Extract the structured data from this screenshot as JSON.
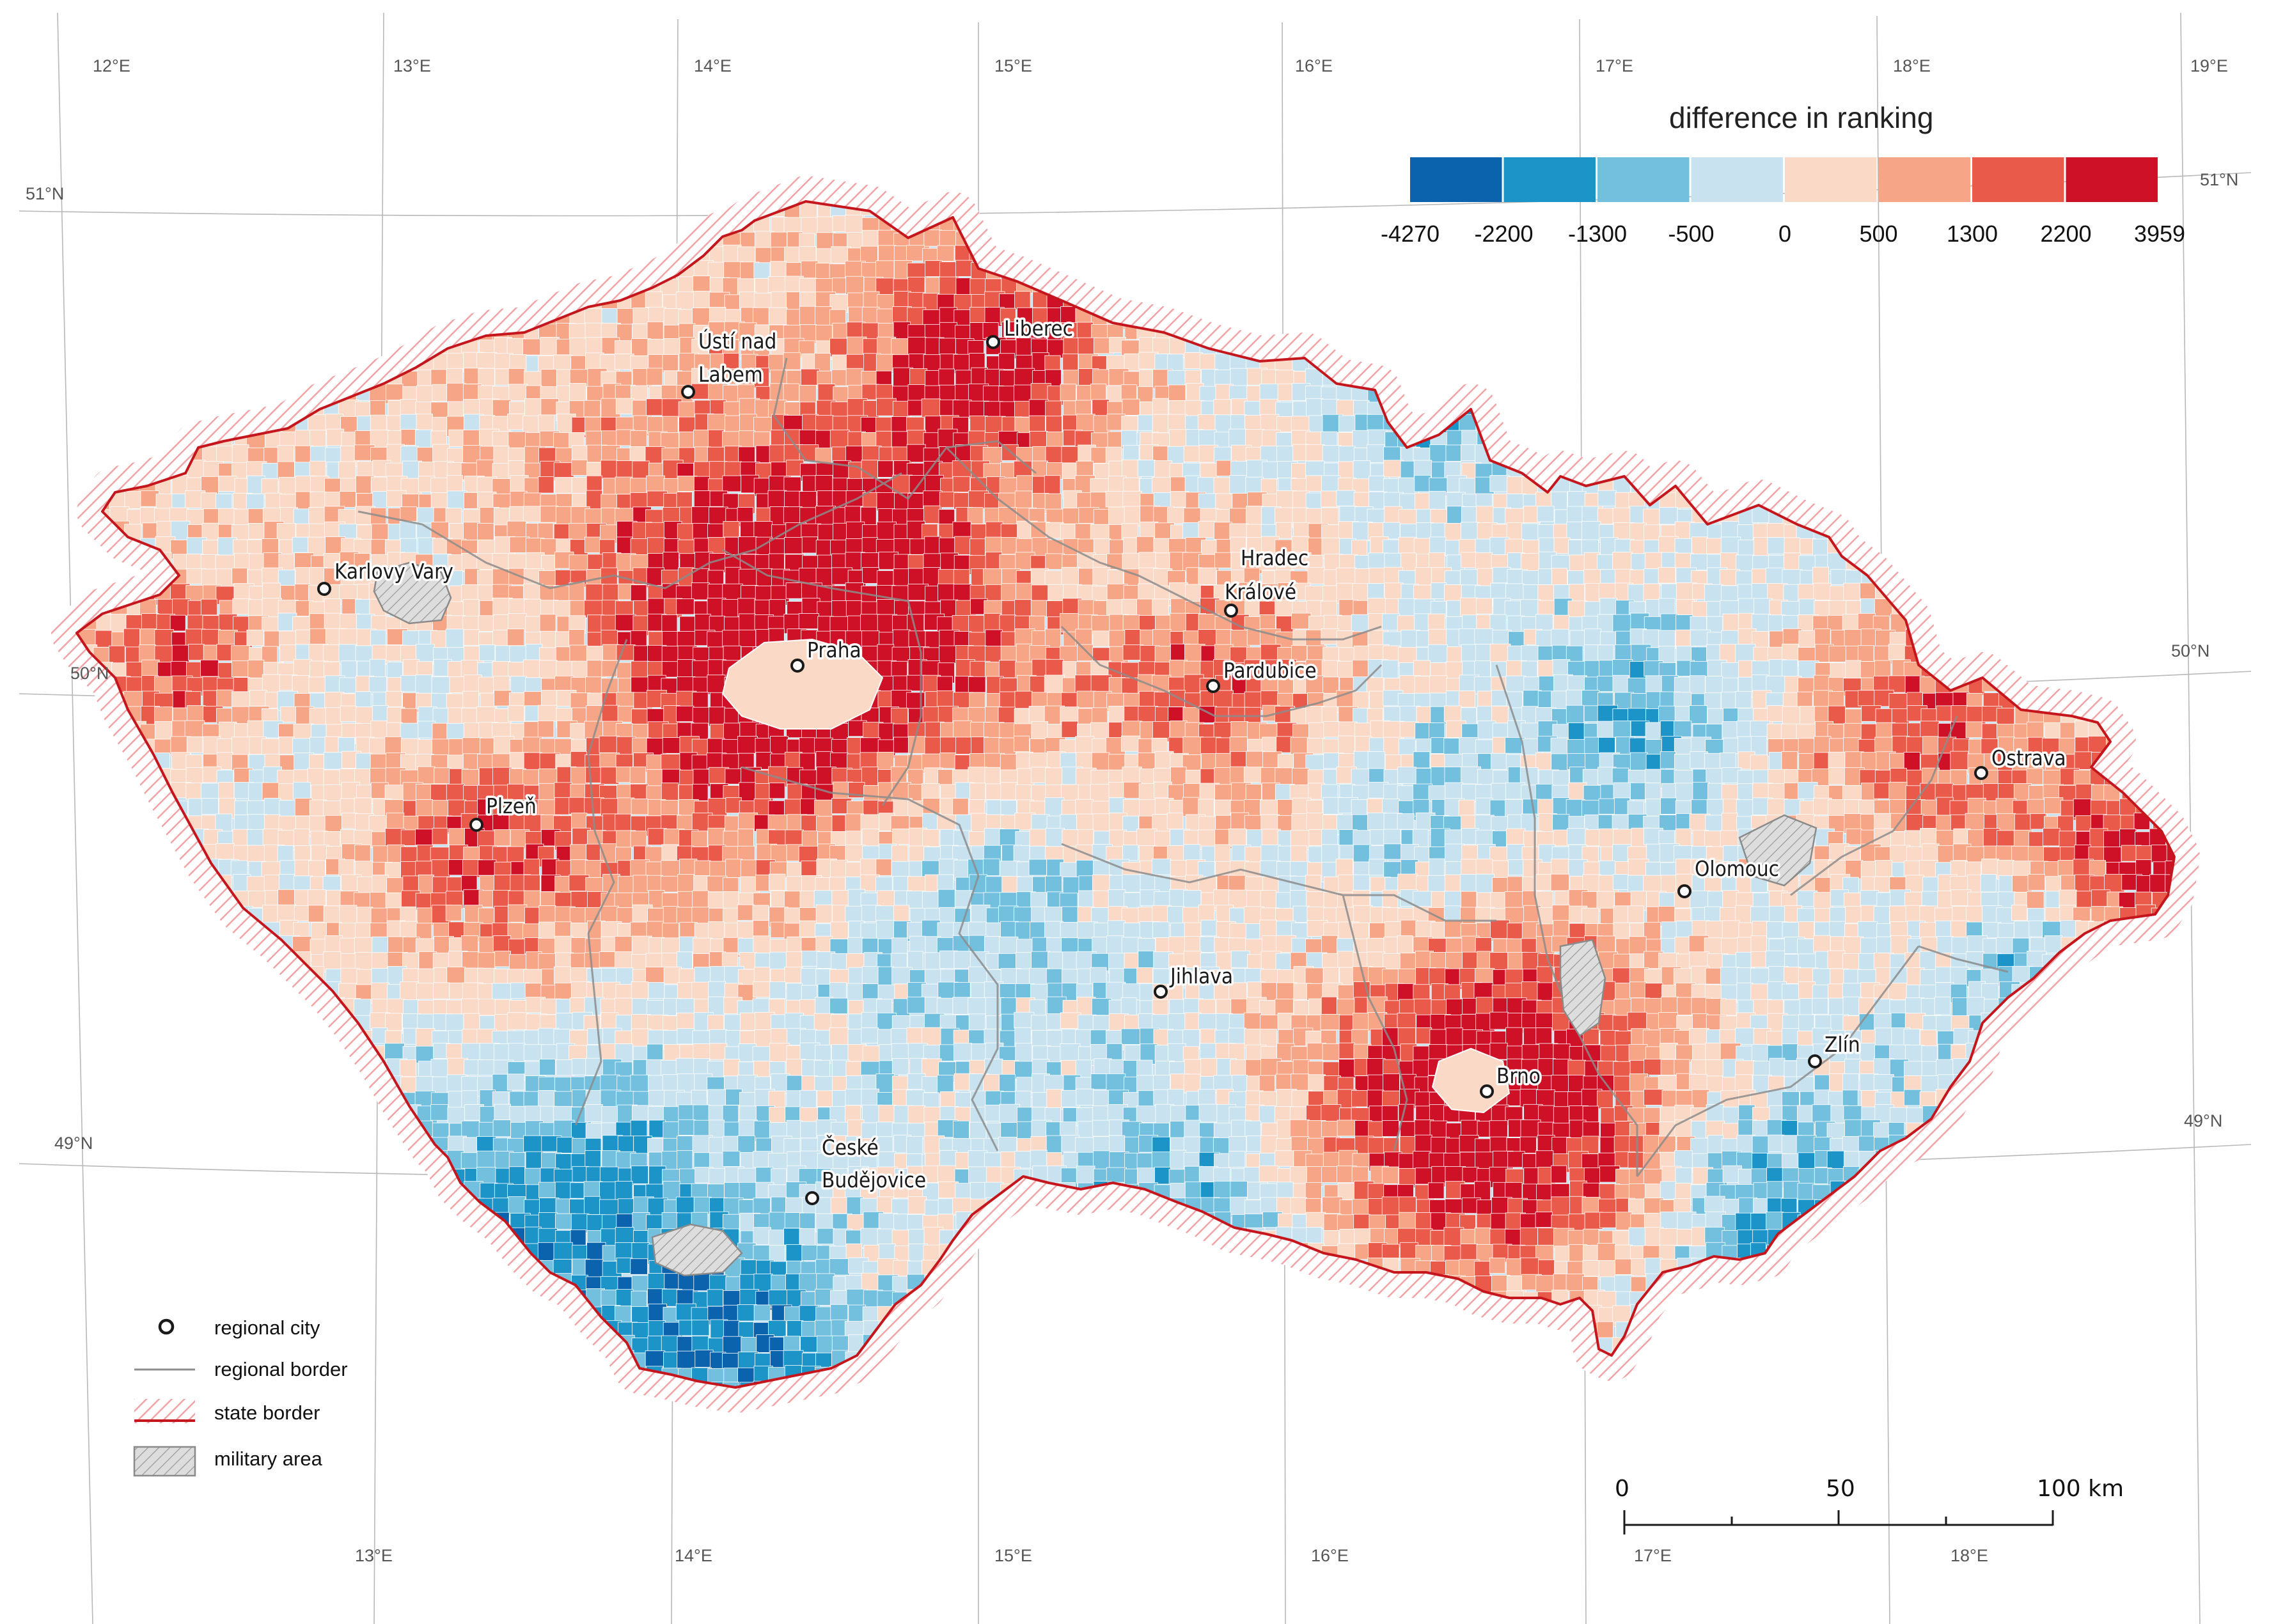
{
  "map": {
    "colors": {
      "class_-4270": "#0b63ad",
      "class_-2200": "#1d94c8",
      "class_-1300": "#73c0de",
      "class_-500": "#c8e3ef",
      "class_0": "#fbd9c7",
      "class_500": "#f6a686",
      "class_1300": "#ea5a4a",
      "class_2200": "#ce1126",
      "state_border": "#c4161c",
      "regional_border": "#8c8c8c",
      "military": "#d8d8d8"
    }
  },
  "legend": {
    "title": "difference in ranking",
    "ticks": [
      "-4270",
      "-2200",
      "-1300",
      "-500",
      "0",
      "500",
      "1300",
      "2200",
      "3959"
    ],
    "colors": [
      "#0b63ad",
      "#1d94c8",
      "#73c0de",
      "#c8e3ef",
      "#fbd9c7",
      "#f6a686",
      "#ea5a4a",
      "#ce1126"
    ]
  },
  "key": {
    "regional_city": "regional city",
    "regional_border": "regional border",
    "state_border": "state border",
    "military_area": "military area"
  },
  "graticule": {
    "top": [
      "12°E",
      "13°E",
      "14°E",
      "15°E",
      "16°E",
      "17°E",
      "18°E",
      "19°E"
    ],
    "bottom": [
      "13°E",
      "14°E",
      "15°E",
      "16°E",
      "17°E",
      "18°E"
    ],
    "left": [
      "51°N",
      "50°N",
      "49°N"
    ],
    "right": [
      "51°N",
      "50°N",
      "49°N"
    ]
  },
  "cities": {
    "liberec": "Liberec",
    "usti_1": "Ústí nad",
    "usti_2": "Labem",
    "karlovy_vary": "Karlovy Vary",
    "hradec_1": "Hradec",
    "hradec_2": "Králové",
    "praha": "Praha",
    "pardubice": "Pardubice",
    "ostrava": "Ostrava",
    "plzen": "Plzeň",
    "olomouc": "Olomouc",
    "jihlava": "Jihlava",
    "zlin": "Zlín",
    "brno": "Brno",
    "budejovice_1": "České",
    "budejovice_2": "Budějovice"
  },
  "scalebar": {
    "labels": [
      "0",
      "50",
      "100 km"
    ]
  }
}
